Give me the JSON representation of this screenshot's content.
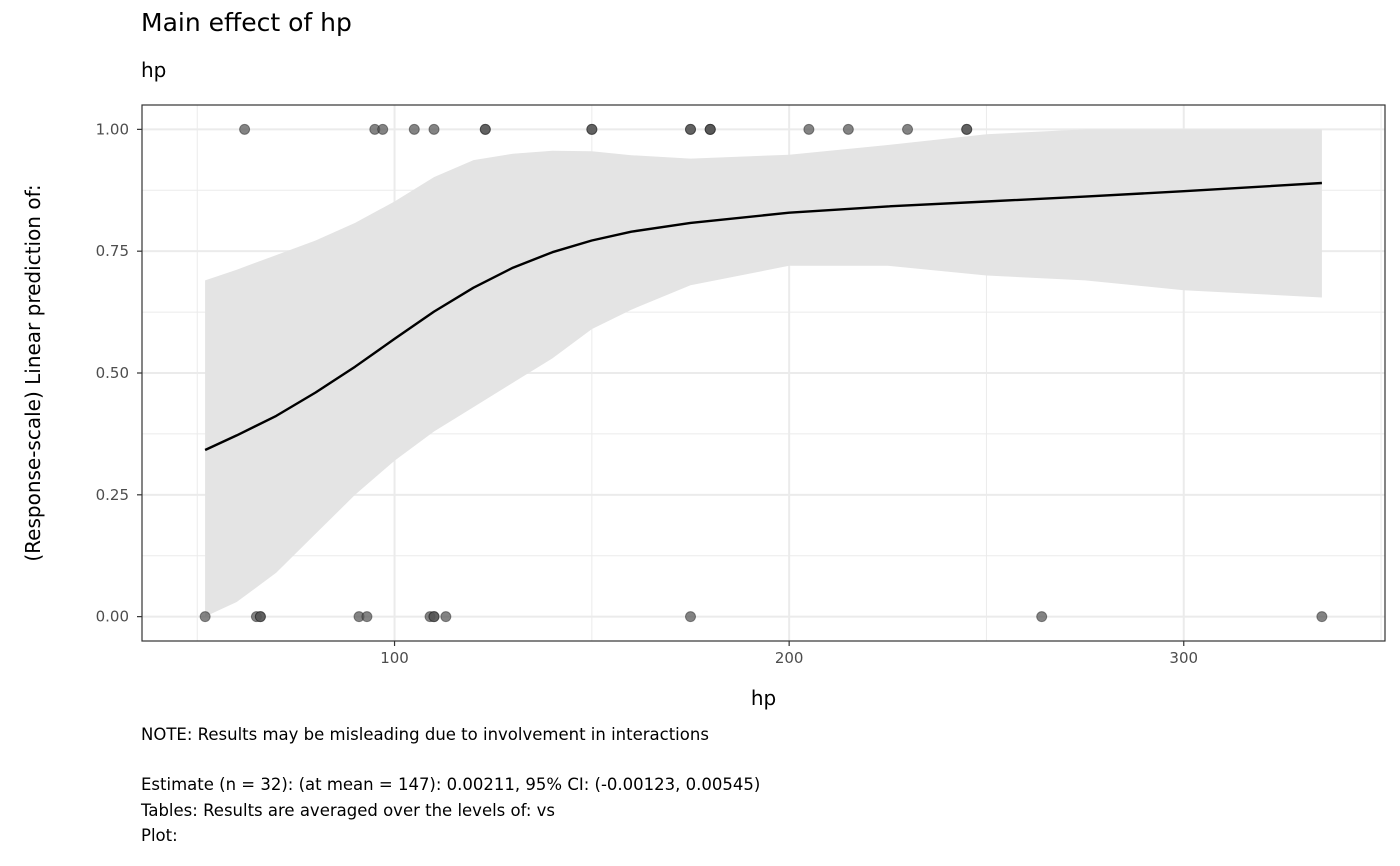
{
  "title": "Main effect of hp",
  "subtitle": "hp",
  "captions": {
    "note": "NOTE: Results may be misleading due to involvement in interactions",
    "estimate": "Estimate (n = 32): (at mean = 147): 0.00211, 95% CI: (-0.00123, 0.00545)",
    "tables": "Tables: Results are averaged over the levels of: vs",
    "plot": "Plot:"
  },
  "chart_data": {
    "type": "line",
    "xlabel": "hp",
    "ylabel": "(Response-scale) Linear prediction of:",
    "xlim": [
      36,
      351
    ],
    "ylim": [
      -0.05,
      1.05
    ],
    "x_ticks": [
      100,
      200,
      300
    ],
    "x_tick_labels": [
      "100",
      "200",
      "300"
    ],
    "y_ticks": [
      0,
      0.25,
      0.5,
      0.75,
      1
    ],
    "y_tick_labels": [
      "0.00",
      "0.25",
      "0.50",
      "0.75",
      "1.00"
    ],
    "grid": true,
    "legend": "none",
    "colors": {
      "line": "#000000",
      "band": "#e4e4e4",
      "points": "#555555",
      "grid": "#ebebeb",
      "border": "#333333"
    },
    "fit": {
      "x": [
        52,
        60,
        70,
        80,
        90,
        100,
        110,
        120,
        130,
        140,
        150,
        160,
        175,
        200,
        225,
        250,
        275,
        300,
        335
      ],
      "y": [
        0.342,
        0.372,
        0.412,
        0.46,
        0.513,
        0.57,
        0.626,
        0.675,
        0.716,
        0.748,
        0.772,
        0.79,
        0.808,
        0.829,
        0.842,
        0.852,
        0.862,
        0.873,
        0.89
      ],
      "lower": [
        0.0,
        0.03,
        0.09,
        0.17,
        0.25,
        0.32,
        0.38,
        0.43,
        0.48,
        0.53,
        0.59,
        0.63,
        0.68,
        0.72,
        0.72,
        0.7,
        0.69,
        0.67,
        0.655
      ],
      "upper": [
        0.69,
        0.712,
        0.742,
        0.772,
        0.808,
        0.852,
        0.902,
        0.937,
        0.95,
        0.956,
        0.955,
        0.947,
        0.94,
        0.948,
        0.968,
        0.99,
        1.0,
        1.0,
        1.0
      ]
    },
    "points": [
      {
        "x": 62,
        "y": 1
      },
      {
        "x": 95,
        "y": 1
      },
      {
        "x": 97,
        "y": 1
      },
      {
        "x": 105,
        "y": 1
      },
      {
        "x": 110,
        "y": 1
      },
      {
        "x": 123,
        "y": 1
      },
      {
        "x": 123,
        "y": 1
      },
      {
        "x": 150,
        "y": 1
      },
      {
        "x": 150,
        "y": 1
      },
      {
        "x": 175,
        "y": 1
      },
      {
        "x": 175,
        "y": 1
      },
      {
        "x": 180,
        "y": 1
      },
      {
        "x": 180,
        "y": 1
      },
      {
        "x": 180,
        "y": 1
      },
      {
        "x": 205,
        "y": 1
      },
      {
        "x": 215,
        "y": 1
      },
      {
        "x": 230,
        "y": 1
      },
      {
        "x": 245,
        "y": 1
      },
      {
        "x": 245,
        "y": 1
      },
      {
        "x": 52,
        "y": 0
      },
      {
        "x": 65,
        "y": 0
      },
      {
        "x": 66,
        "y": 0
      },
      {
        "x": 66,
        "y": 0
      },
      {
        "x": 91,
        "y": 0
      },
      {
        "x": 93,
        "y": 0
      },
      {
        "x": 109,
        "y": 0
      },
      {
        "x": 110,
        "y": 0
      },
      {
        "x": 110,
        "y": 0
      },
      {
        "x": 113,
        "y": 0
      },
      {
        "x": 175,
        "y": 0
      },
      {
        "x": 264,
        "y": 0
      },
      {
        "x": 335,
        "y": 0
      }
    ]
  }
}
